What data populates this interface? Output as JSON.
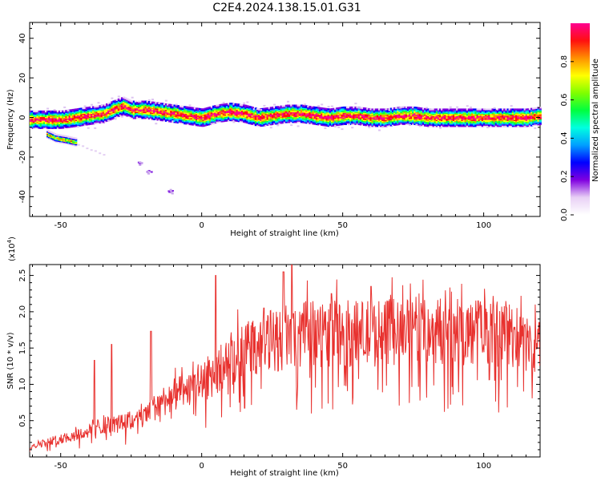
{
  "title": "C2E4.2024.138.15.01.G31",
  "chart_data": [
    {
      "type": "heatmap",
      "xlabel": "Height of straight line (km)",
      "ylabel": "Frequency (Hz)",
      "xlim": [
        -61,
        120
      ],
      "ylim": [
        -50,
        48
      ],
      "xticks": [
        -50,
        0,
        50,
        100
      ],
      "yticks": [
        -40,
        -20,
        0,
        20,
        40
      ],
      "colorbar": {
        "label": "Normalized spectral amplitude",
        "range": [
          0.0,
          1.0
        ],
        "ticks": [
          0.0,
          0.2,
          0.4,
          0.6,
          0.8
        ],
        "colors": [
          "#ffffff",
          "#d8b4f0",
          "#7a00d8",
          "#0000ff",
          "#00b0ff",
          "#00ffd0",
          "#00e000",
          "#c8ff00",
          "#ffff00",
          "#ff9000",
          "#ff0000",
          "#ff0080"
        ]
      },
      "ridge": {
        "x": [
          -61,
          -55,
          -50,
          -45,
          -40,
          -35,
          -30,
          -28,
          -25,
          -20,
          -15,
          -10,
          -5,
          0,
          5,
          10,
          15,
          20,
          25,
          30,
          35,
          40,
          45,
          50,
          55,
          60,
          65,
          70,
          75,
          80,
          85,
          90,
          95,
          100,
          105,
          110,
          115,
          120
        ],
        "y": [
          -1,
          -1,
          -1,
          0,
          1,
          2,
          5,
          6,
          4,
          4,
          3,
          2,
          1,
          0,
          2,
          3,
          2,
          0,
          1,
          2,
          2,
          1,
          0,
          1,
          1,
          0,
          0,
          1,
          1,
          0,
          0,
          0,
          0,
          0,
          0,
          0,
          0,
          1
        ]
      },
      "secondary_feature": {
        "description_x": [
          -55,
          -52,
          -48,
          -45
        ],
        "description_y": [
          -8,
          -10,
          -11,
          -12
        ]
      },
      "scatter_blobs": [
        {
          "x": -22,
          "y": -23
        },
        {
          "x": -19,
          "y": -27
        },
        {
          "x": -11,
          "y": -37
        }
      ]
    },
    {
      "type": "line",
      "xlabel": "Height of straight line (km)",
      "ylabel": "SNR (10 * v/v)",
      "scale_label": "(x10",
      "scale_exp": "4",
      "scale_close": ")",
      "xlim": [
        -61,
        120
      ],
      "ylim": [
        0,
        2.65
      ],
      "xticks": [
        -50,
        0,
        50,
        100
      ],
      "yticks": [
        0.5,
        1.0,
        1.5,
        2.0,
        2.5
      ],
      "ytick_labels": [
        "0.5",
        "1.0",
        "1.5",
        "2.0",
        "2.5"
      ],
      "series_color": "#e8312e",
      "envelope": {
        "x": [
          -61,
          -50,
          -40,
          -35,
          -30,
          -25,
          -20,
          -15,
          -10,
          -5,
          0,
          5,
          10,
          20,
          30,
          40,
          50,
          60,
          70,
          80,
          90,
          100,
          110,
          115,
          118,
          120
        ],
        "y": [
          0.15,
          0.25,
          0.35,
          0.45,
          0.45,
          0.5,
          0.55,
          0.75,
          0.85,
          0.9,
          1.05,
          1.15,
          1.35,
          1.55,
          1.65,
          1.7,
          1.7,
          1.7,
          1.72,
          1.75,
          1.72,
          1.7,
          1.7,
          1.55,
          1.45,
          1.6
        ]
      },
      "spikes": [
        {
          "x": -38,
          "y": 1.33
        },
        {
          "x": -32,
          "y": 1.55
        },
        {
          "x": -18,
          "y": 1.73
        },
        {
          "x": 5,
          "y": 2.5
        },
        {
          "x": 22,
          "y": 2.05
        },
        {
          "x": 29,
          "y": 2.55
        },
        {
          "x": 32,
          "y": 2.65
        },
        {
          "x": 46,
          "y": 2.25
        },
        {
          "x": 60,
          "y": 2.35
        },
        {
          "x": 98,
          "y": 2.15
        }
      ]
    }
  ]
}
